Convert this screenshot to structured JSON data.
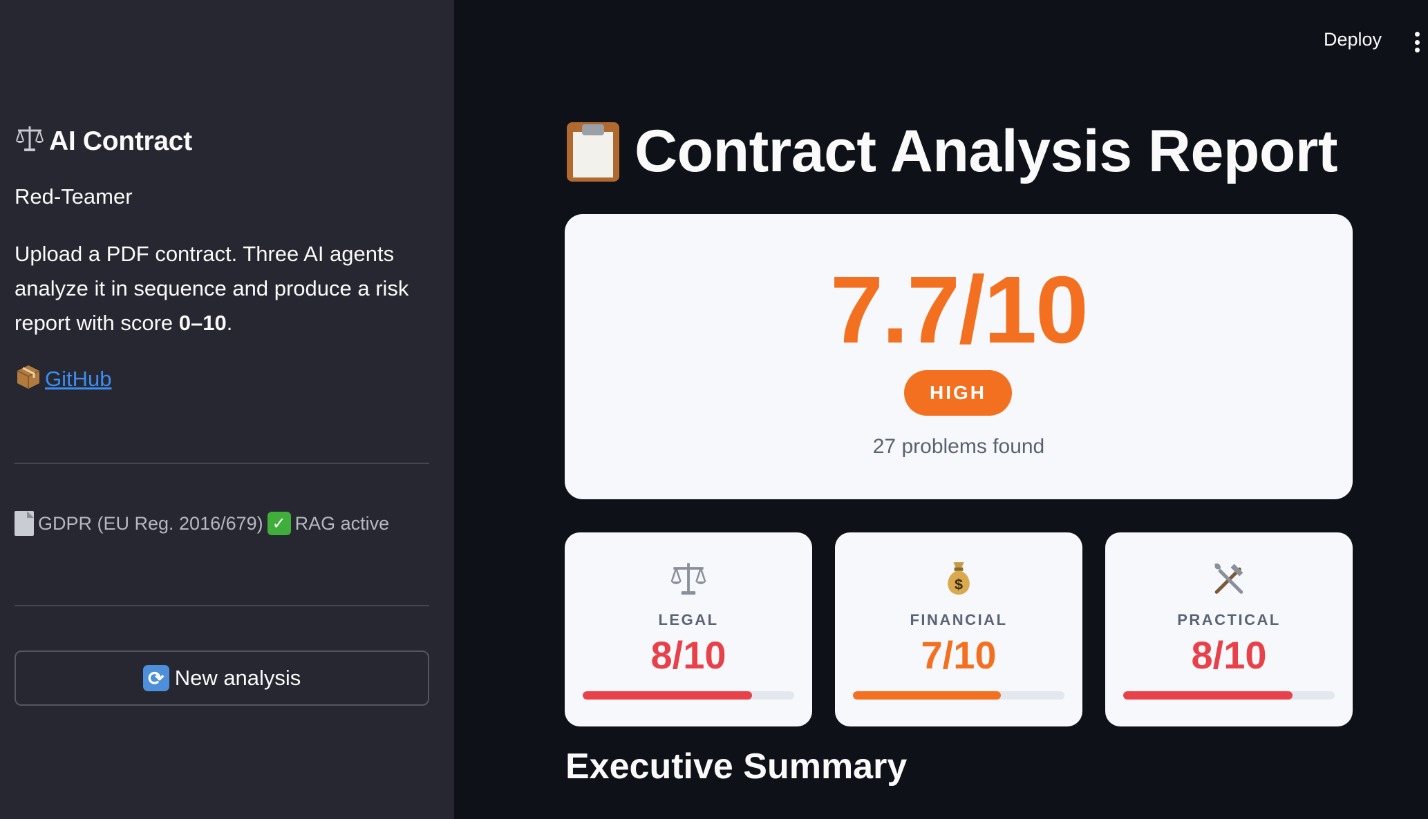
{
  "sidebar": {
    "title": "AI Contract",
    "subtitle": "Red-Teamer",
    "description_before": "Upload a PDF contract. Three AI agents analyze it in sequence and produce a risk report with score ",
    "description_bold": "0–10",
    "description_after": ".",
    "github_label": "GitHub",
    "status_source": "GDPR (EU Reg. 2016/679)",
    "status_rag": "RAG active",
    "new_analysis_label": "New analysis"
  },
  "topbar": {
    "deploy_label": "Deploy"
  },
  "main": {
    "title": "Contract Analysis Report",
    "overall": {
      "score": "7.7/10",
      "severity": "HIGH",
      "problems": "27 problems found"
    },
    "categories": [
      {
        "label": "LEGAL",
        "score": "8/10",
        "fraction": 0.8,
        "color": "#e8414a",
        "icon": "scales-icon"
      },
      {
        "label": "FINANCIAL",
        "score": "7/10",
        "fraction": 0.7,
        "color": "#f37020",
        "icon": "money-bag-icon"
      },
      {
        "label": "PRACTICAL",
        "score": "8/10",
        "fraction": 0.8,
        "color": "#e8414a",
        "icon": "tools-icon"
      }
    ],
    "section_heading": "Executive Summary"
  },
  "colors": {
    "accent_orange": "#f37020",
    "accent_red": "#e8414a",
    "link_blue": "#3b8ef0"
  }
}
